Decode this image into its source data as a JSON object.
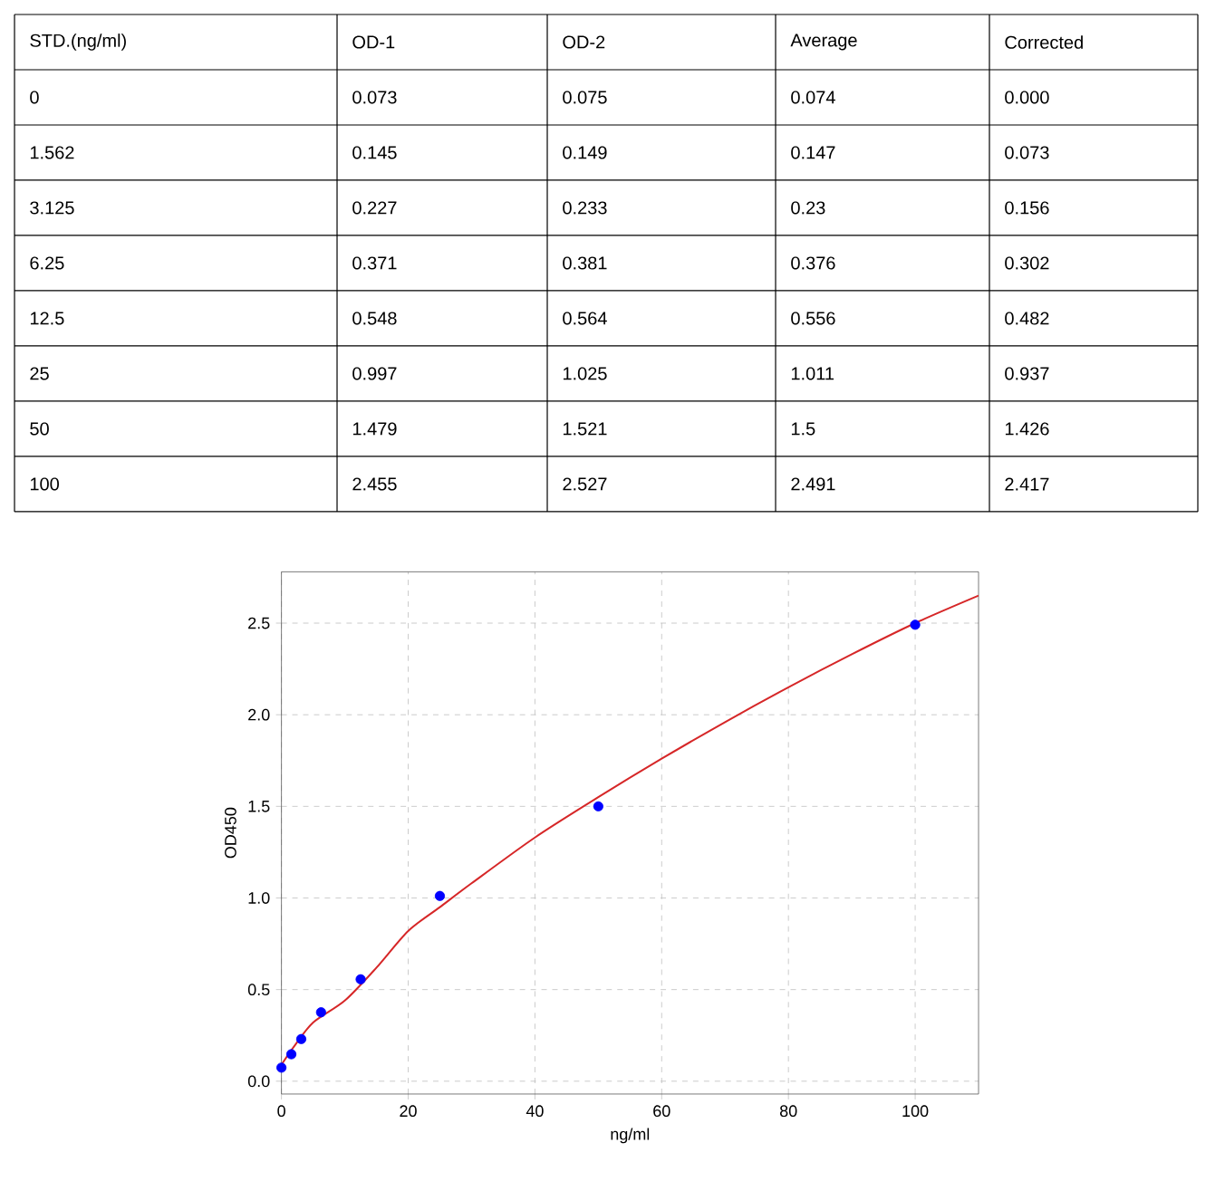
{
  "chart_data": [
    {
      "type": "other",
      "annotations": [
        "STD.(ng/ml)",
        "OD-1",
        "OD-2",
        "Average",
        "Corrected",
        "0",
        "0.073",
        "0.075",
        "0.074",
        "0.000",
        "1.562",
        "0.145",
        "0.149",
        "0.147",
        "0.073",
        "3.125",
        "0.227",
        "0.233",
        "0.23",
        "0.156",
        "6.25",
        "0.371",
        "0.381",
        "0.376",
        "0.302",
        "12.5",
        "0.548",
        "0.564",
        "0.556",
        "0.482",
        "25",
        "0.997",
        "1.025",
        "1.011",
        "0.937",
        "50",
        "1.479",
        "1.521",
        "1.5",
        "1.426",
        "100",
        "2.455",
        "2.527",
        "2.491",
        "2.417"
      ]
    },
    {
      "type": "scatter",
      "xlabel": "ng/ml",
      "ylabel": "OD450",
      "grid": true,
      "xlim": [
        0,
        110
      ],
      "ylim": [
        -0.07,
        2.78
      ],
      "xticks": [
        0,
        20,
        40,
        60,
        80,
        100
      ],
      "yticks": [
        {
          "value": 0,
          "label": "0.0"
        },
        {
          "value": 0.5,
          "label": "0.5"
        },
        {
          "value": 1,
          "label": "1.0"
        },
        {
          "value": 1.5,
          "label": "1.5"
        },
        {
          "value": 2,
          "label": "2.0"
        },
        {
          "value": 2.5,
          "label": "2.5"
        }
      ],
      "series": [
        {
          "type": "scatter",
          "color": "#0000ff",
          "marker": "circle",
          "x": [
            0,
            1.562,
            3.125,
            6.25,
            12.5,
            25,
            50,
            100
          ],
          "values": [
            0.074,
            0.147,
            0.23,
            0.376,
            0.556,
            1.011,
            1.5,
            2.491
          ]
        },
        {
          "type": "line",
          "color": "#d62728",
          "marker": "none",
          "line_style": "solid",
          "x": [
            0,
            2,
            5,
            10,
            15,
            20,
            25,
            30,
            40,
            50,
            60,
            70,
            80,
            90,
            100,
            110
          ],
          "values": [
            0.09,
            0.19,
            0.32,
            0.44,
            0.62,
            0.82,
            0.95,
            1.08,
            1.33,
            1.55,
            1.76,
            1.96,
            2.15,
            2.33,
            2.5,
            2.65
          ]
        }
      ]
    }
  ]
}
